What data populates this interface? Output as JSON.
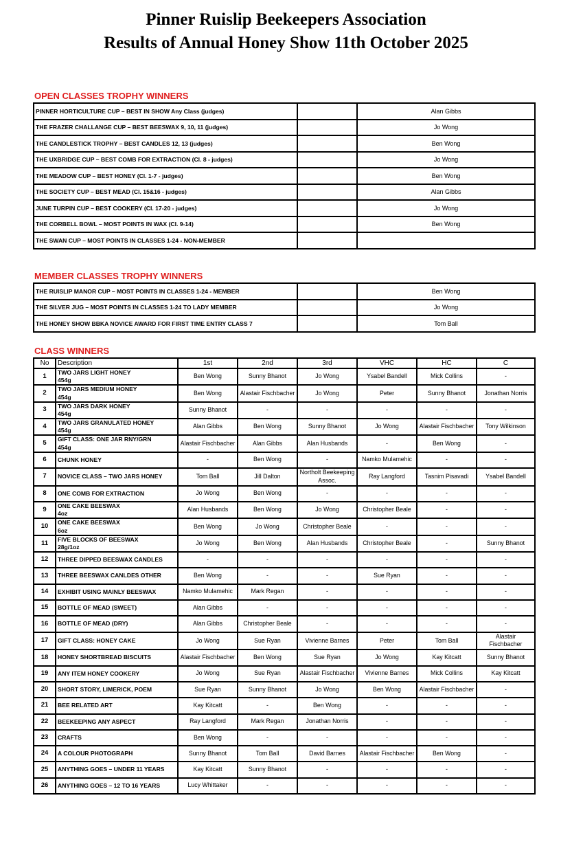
{
  "title": {
    "line1": "Pinner Ruislip Beekeepers Association",
    "line2": "Results of Annual Honey Show 11th October 2025"
  },
  "open_classes": {
    "heading": "OPEN CLASSES TROPHY WINNERS",
    "rows": [
      {
        "trophy": "PINNER HORTICULTURE CUP – BEST IN SHOW Any Class (judges)",
        "winner": "Alan Gibbs"
      },
      {
        "trophy": "THE FRAZER CHALLANGE CUP – BEST BEESWAX 9, 10, 11 (judges)",
        "winner": "Jo Wong"
      },
      {
        "trophy": "THE CANDLESTICK TROPHY – BEST CANDLES 12, 13 (judges)",
        "winner": "Ben Wong"
      },
      {
        "trophy": "THE UXBRIDGE CUP – BEST COMB FOR EXTRACTION (Cl. 8  - judges)",
        "winner": "Jo Wong"
      },
      {
        "trophy": "THE MEADOW CUP – BEST HONEY (Cl. 1-7 - judges)",
        "winner": "Ben Wong"
      },
      {
        "trophy": "THE SOCIETY CUP – BEST MEAD (Cl. 15&16 - judges)",
        "winner": "Alan Gibbs"
      },
      {
        "trophy": "JUNE TURPIN CUP – BEST COOKERY (Cl. 17-20 - judges)",
        "winner": "Jo Wong"
      },
      {
        "trophy": "THE CORBELL BOWL – MOST POINTS IN WAX (Cl. 9-14)",
        "winner": "Ben Wong"
      },
      {
        "trophy": "THE SWAN CUP – MOST POINTS IN CLASSES 1-24 - NON-MEMBER",
        "winner": ""
      }
    ]
  },
  "member_classes": {
    "heading": "MEMBER CLASSES TROPHY WINNERS",
    "rows": [
      {
        "trophy": "THE RUISLIP MANOR CUP – MOST POINTS IN CLASSES 1-24 - MEMBER",
        "winner": "Ben Wong"
      },
      {
        "trophy": "THE SILVER JUG – MOST POINTS IN CLASSES 1-24 TO LADY MEMBER",
        "winner": "Jo Wong"
      },
      {
        "trophy": "THE HONEY SHOW BBKA NOVICE AWARD FOR FIRST TIME ENTRY CLASS 7",
        "winner": "Tom Ball"
      }
    ]
  },
  "class_winners": {
    "heading": "CLASS WINNERS",
    "columns": [
      "No",
      "Description",
      "1st",
      "2nd",
      "3rd",
      "VHC",
      "HC",
      "C"
    ],
    "rows": [
      {
        "no": "1",
        "desc": "TWO JARS LIGHT HONEY",
        "sub": "454g",
        "places": [
          "Ben Wong",
          "Sunny Bhanot",
          "Jo Wong",
          "Ysabel Bandell",
          "Mick Collins",
          "-"
        ]
      },
      {
        "no": "2",
        "desc": "TWO JARS MEDIUM HONEY",
        "sub": "454g",
        "places": [
          "Ben Wong",
          "Alastair Fischbacher",
          "Jo Wong",
          "Peter",
          "Sunny Bhanot",
          "Jonathan Norris"
        ]
      },
      {
        "no": "3",
        "desc": "TWO JARS DARK HONEY",
        "sub": "454g",
        "places": [
          "Sunny Bhanot",
          "-",
          "-",
          "-",
          "-",
          "-"
        ]
      },
      {
        "no": "4",
        "desc": "TWO JARS GRANULATED HONEY",
        "sub": "454g",
        "places": [
          "Alan Gibbs",
          "Ben Wong",
          "Sunny Bhanot",
          "Jo Wong",
          "Alastair Fischbacher",
          "Tony Wilkinson"
        ]
      },
      {
        "no": "5",
        "desc": "GIFT CLASS: ONE JAR RNY/GRN",
        "sub": "454g",
        "places": [
          "Alastair Fischbacher",
          "Alan Gibbs",
          "Alan Husbands",
          "-",
          "Ben Wong",
          "-"
        ]
      },
      {
        "no": "6",
        "desc": "CHUNK HONEY",
        "sub": "",
        "places": [
          "-",
          "Ben Wong",
          "-",
          "Namko Mulamehic",
          "-",
          "-"
        ]
      },
      {
        "no": "7",
        "desc": "NOVICE CLASS – TWO JARS HONEY",
        "sub": "",
        "places": [
          "Tom Ball",
          "Jill Dalton",
          "Northolt Beekeeping Assoc.",
          "Ray Langford",
          "Tasnim Pisavadi",
          "Ysabel Bandell"
        ]
      },
      {
        "no": "8",
        "desc": "ONE COMB FOR EXTRACTION",
        "sub": "",
        "places": [
          "Jo Wong",
          "Ben Wong",
          "-",
          "-",
          "-",
          "-"
        ]
      },
      {
        "no": "9",
        "desc": "ONE CAKE BEESWAX",
        "sub": "4oz",
        "places": [
          "Alan Husbands",
          "Ben Wong",
          "Jo Wong",
          "Christopher Beale",
          "-",
          "-"
        ]
      },
      {
        "no": "10",
        "desc": "ONE CAKE BEESWAX",
        "sub": "6oz",
        "places": [
          "Ben Wong",
          "Jo Wong",
          "Christopher Beale",
          "-",
          "-",
          "-"
        ]
      },
      {
        "no": "11",
        "desc": "FIVE BLOCKS OF BEESWAX",
        "sub": "28g/1oz",
        "places": [
          "Jo Wong",
          "Ben Wong",
          "Alan Husbands",
          "Christopher Beale",
          "-",
          "Sunny Bhanot"
        ]
      },
      {
        "no": "12",
        "desc": "THREE DIPPED BEESWAX CANDLES",
        "sub": "",
        "places": [
          "-",
          "-",
          "-",
          "-",
          "-",
          "-"
        ]
      },
      {
        "no": "13",
        "desc": "THREE BEESWAX CANLDES OTHER",
        "sub": "",
        "places": [
          "Ben Wong",
          "-",
          "-",
          "Sue Ryan",
          "-",
          "-"
        ]
      },
      {
        "no": "14",
        "desc": "EXHIBIT USING MAINLY BEESWAX",
        "sub": "",
        "places": [
          "Namko Mulamehic",
          "Mark Regan",
          "-",
          "-",
          "-",
          "-"
        ]
      },
      {
        "no": "15",
        "desc": "BOTTLE OF MEAD (SWEET)",
        "sub": "",
        "places": [
          "Alan Gibbs",
          "-",
          "-",
          "-",
          "-",
          "-"
        ]
      },
      {
        "no": "16",
        "desc": "BOTTLE OF MEAD (DRY)",
        "sub": "",
        "places": [
          "Alan Gibbs",
          "Christopher Beale",
          "-",
          "-",
          "-",
          "-"
        ]
      },
      {
        "no": "17",
        "desc": "GIFT CLASS: HONEY CAKE",
        "sub": "",
        "places": [
          "Jo Wong",
          "Sue Ryan",
          "Vivienne Barnes",
          "Peter",
          "Tom Ball",
          "Alastair Fischbacher"
        ]
      },
      {
        "no": "18",
        "desc": "HONEY SHORTBREAD BISCUITS",
        "sub": "",
        "places": [
          "Alastair Fischbacher",
          "Ben Wong",
          "Sue Ryan",
          "Jo Wong",
          "Kay Kitcatt",
          "Sunny Bhanot"
        ]
      },
      {
        "no": "19",
        "desc": "ANY ITEM HONEY COOKERY",
        "sub": "",
        "places": [
          "Jo Wong",
          "Sue Ryan",
          "Alastair Fischbacher",
          "Vivienne Barnes",
          "Mick Collins",
          "Kay Kitcatt"
        ]
      },
      {
        "no": "20",
        "desc": "SHORT STORY, LIMERICK, POEM",
        "sub": "",
        "places": [
          "Sue Ryan",
          "Sunny Bhanot",
          "Jo Wong",
          "Ben Wong",
          "Alastair Fischbacher",
          "-"
        ]
      },
      {
        "no": "21",
        "desc": "BEE RELATED ART",
        "sub": "",
        "places": [
          "Kay Kitcatt",
          "-",
          "Ben Wong",
          "-",
          "-",
          "-"
        ]
      },
      {
        "no": "22",
        "desc": "BEEKEEPING ANY ASPECT",
        "sub": "",
        "places": [
          "Ray Langford",
          "Mark Regan",
          "Jonathan Norris",
          "-",
          "-",
          "-"
        ]
      },
      {
        "no": "23",
        "desc": "CRAFTS",
        "sub": "",
        "places": [
          "Ben Wong",
          "-",
          "-",
          "-",
          "-",
          "-"
        ]
      },
      {
        "no": "24",
        "desc": "A COLOUR PHOTOGRAPH",
        "sub": "",
        "places": [
          "Sunny Bhanot",
          "Tom Ball",
          "David Barnes",
          "Alastair Fischbacher",
          "Ben Wong",
          "-"
        ]
      },
      {
        "no": "25",
        "desc": "ANYTHING GOES – UNDER 11 YEARS",
        "sub": "",
        "places": [
          "Kay Kitcatt",
          "Sunny Bhanot",
          "-",
          "-",
          "-",
          "-"
        ]
      },
      {
        "no": "26",
        "desc": "ANYTHING GOES – 12 TO 16 YEARS",
        "sub": "",
        "places": [
          "Lucy Whittaker",
          "-",
          "-",
          "-",
          "-",
          "-"
        ]
      }
    ]
  },
  "colors": {
    "heading": "#e02020",
    "border": "#000000"
  }
}
